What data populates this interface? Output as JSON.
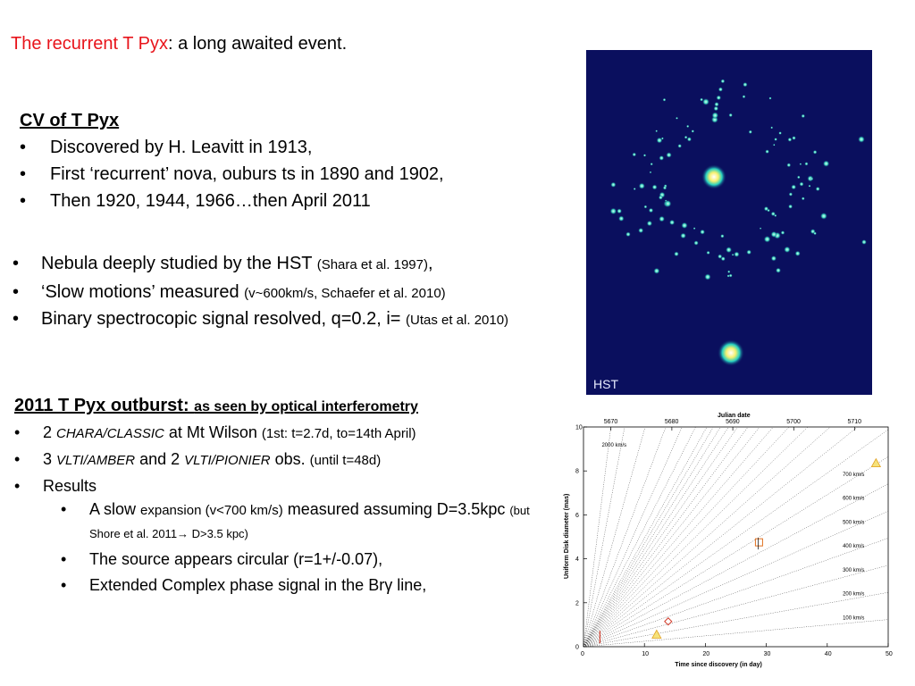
{
  "title": {
    "red": "The recurrent T Pyx",
    "rest": ": a long awaited event."
  },
  "cv": {
    "heading": "CV of T Pyx",
    "items": [
      "Discovered by H. Leavitt in 1913,",
      "First ‘recurrent’ nova, ouburs ts in 1890 and 1902,",
      "Then 1920, 1944, 1966…then April 2011"
    ]
  },
  "nebula": {
    "items": [
      {
        "main": "Nebula deeply studied by the HST ",
        "small": "(Shara et al. 1997)",
        "end": ","
      },
      {
        "main": "‘Slow motions’ measured ",
        "small": "(v~600km/s, Schaefer et al. 2010)",
        "end": ""
      },
      {
        "main": "Binary spectrocopic signal resolved, q=0.2, i= ",
        "small": "(Utas et al. 2010)",
        "end": ""
      }
    ]
  },
  "outburst": {
    "heading": "2011 T Pyx outburst: ",
    "subheading": "as seen by optical interferometry",
    "i1": {
      "a": "2 ",
      "b": "CHARA/CLASSIC",
      "c": " at Mt Wilson ",
      "d": "(1st: t=2.7d, to=14th April)"
    },
    "i2": {
      "a": "3 ",
      "b": "VLTI/AMBER",
      "c": " and 2 ",
      "d": "VLTI/PIONIER",
      "e": " obs. ",
      "f": "(until t=48d)"
    },
    "i3": "Results",
    "r1": {
      "a": "A slow ",
      "b": "expansion  (v<700 km/s)",
      "c": " measured assuming D=3.5kpc ",
      "d": "(but Shore et al. 2011→ D>3.5 kpc)"
    },
    "r2": "The source appears circular (r=1+/-0.07),",
    "r3": {
      "a": "Extended Complex phase signal in the Br",
      "b": "γ",
      "c": " line,"
    }
  },
  "hst_label": "HST",
  "chart_data": {
    "type": "scatter",
    "xlabel": "Time since discovery (in day)",
    "ylabel": "Uniform Disk diameter (mas)",
    "top_label": "Julian date",
    "xlim": [
      0,
      50
    ],
    "ylim": [
      0,
      10
    ],
    "x_ticks": [
      "0",
      "10",
      "20",
      "30",
      "40",
      "50"
    ],
    "y_ticks": [
      "0",
      "2",
      "4",
      "6",
      "8",
      "10"
    ],
    "jd_ticks": [
      "5670",
      "5680",
      "5690",
      "5700",
      "5710"
    ],
    "velocity_lines": [
      {
        "v": 100,
        "label": "100 km/s"
      },
      {
        "v": 200,
        "label": "200 km/s"
      },
      {
        "v": 300,
        "label": "300 km/s"
      },
      {
        "v": 400,
        "label": "400 km/s"
      },
      {
        "v": 500,
        "label": "500 km/s"
      },
      {
        "v": 600,
        "label": "600 km/s"
      },
      {
        "v": 700,
        "label": "700 km/s"
      },
      {
        "v": 2000,
        "label": "2000 km/s"
      }
    ],
    "points": [
      {
        "x": 2.7,
        "y": 0.4,
        "shape": "bar",
        "color": "#d23b2a"
      },
      {
        "x": 12.0,
        "y": 0.55,
        "shape": "triangle",
        "color": "#e0a020"
      },
      {
        "x": 13.9,
        "y": 1.15,
        "shape": "diamond",
        "color": "#d23b2a"
      },
      {
        "x": 28.8,
        "y": 4.75,
        "shape": "square",
        "color": "#e07020"
      },
      {
        "x": 48.0,
        "y": 8.35,
        "shape": "triangle",
        "color": "#e0a020"
      }
    ]
  }
}
